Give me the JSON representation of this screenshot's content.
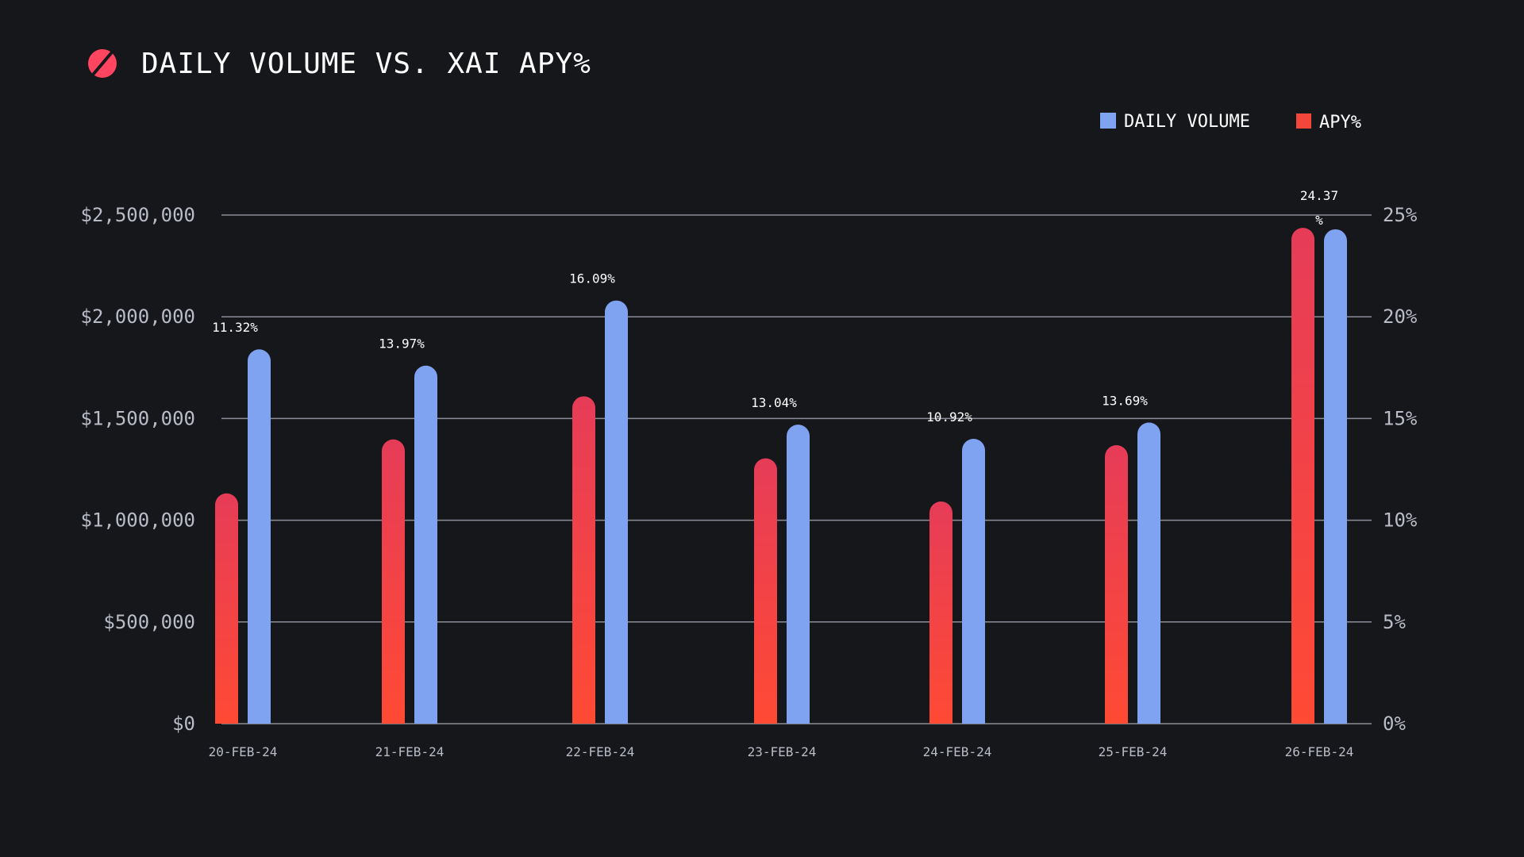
{
  "chart_data": {
    "type": "bar",
    "title": "DAILY VOLUME VS. XAI APY%",
    "categories": [
      "20-FEB-24",
      "21-FEB-24",
      "22-FEB-24",
      "23-FEB-24",
      "24-FEB-24",
      "25-FEB-24",
      "26-FEB-24"
    ],
    "series": [
      {
        "name": "APY%",
        "axis": "right",
        "color": "#f4473a",
        "values": [
          11.32,
          13.97,
          16.09,
          13.04,
          10.92,
          13.69,
          24.37
        ],
        "data_labels": [
          "11.32%",
          "13.97%",
          "16.09%",
          "13.04%",
          "10.92%",
          "13.69%",
          "24.37%"
        ]
      },
      {
        "name": "DAILY VOLUME",
        "axis": "left",
        "color": "#7fa3f0",
        "values": [
          1840000,
          1760000,
          2080000,
          1470000,
          1400000,
          1480000,
          2430000
        ]
      }
    ],
    "ylim_left": [
      0,
      2500000
    ],
    "ylim_right": [
      0,
      25
    ],
    "y_ticks_left": [
      "$0",
      "$500,000",
      "$1,000,000",
      "$1,500,000",
      "$2,000,000",
      "$2,500,000"
    ],
    "y_ticks_right": [
      "0%",
      "5%",
      "10%",
      "15%",
      "20%",
      "25%"
    ],
    "legend": [
      "DAILY VOLUME",
      "APY%"
    ],
    "legend_position": "top-right",
    "grid": true,
    "colors": {
      "background": "#16171b",
      "apy_top": "#e63c58",
      "apy_bottom": "#ff4a34",
      "volume": "#7fa3f0",
      "logo": "#ff4560"
    }
  }
}
